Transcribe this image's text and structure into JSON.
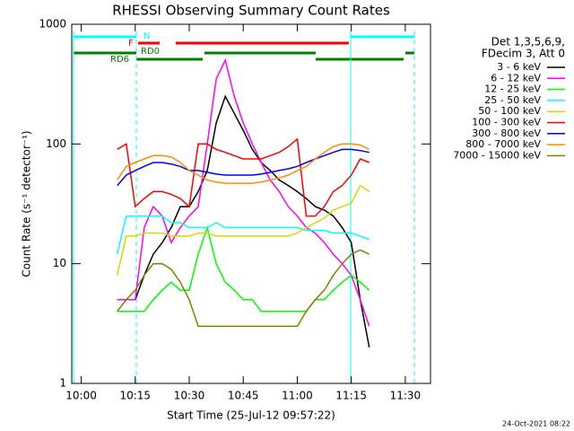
{
  "chart_data": {
    "type": "line",
    "title": "RHESSI Observing Summary Count Rates",
    "xlabel": "Start Time (25-Jul-12 09:57:22)",
    "ylabel": "Count Rate (s⁻¹ detector⁻¹)",
    "legend_title": [
      "Det 1,3,5,6,9,",
      "FDecim 3, Att 0"
    ],
    "footer": "24-Oct-2021 08:22",
    "annotations": [
      "N",
      "F",
      "RD0",
      "RD6"
    ],
    "log_y": true,
    "legend": "right",
    "xlim": [
      597.367,
      697
    ],
    "ylim": [
      1,
      1000
    ],
    "xticks": [
      {
        "value": 600,
        "label": "10:00"
      },
      {
        "value": 615,
        "label": "10:15"
      },
      {
        "value": 630,
        "label": "10:30"
      },
      {
        "value": 645,
        "label": "10:45"
      },
      {
        "value": 660,
        "label": "11:00"
      },
      {
        "value": 675,
        "label": "11:15"
      },
      {
        "value": 690,
        "label": "11:30"
      }
    ],
    "yticks": [
      1,
      10,
      100,
      1000
    ],
    "x": [
      610,
      612.5,
      615,
      617.5,
      620,
      622.5,
      625,
      627.5,
      630,
      632.5,
      635,
      637.5,
      640,
      642.5,
      645,
      647.5,
      650,
      652.5,
      655,
      657.5,
      660,
      662.5,
      665,
      667.5,
      670,
      672.5,
      675,
      677.5,
      680
    ],
    "series": [
      {
        "name": "3 - 6 keV",
        "color": "#000000",
        "values": [
          5,
          5,
          5,
          8,
          12,
          15,
          20,
          30,
          30,
          40,
          60,
          150,
          250,
          180,
          130,
          90,
          70,
          60,
          50,
          45,
          40,
          35,
          30,
          28,
          25,
          20,
          15,
          5,
          2
        ]
      },
      {
        "name": "6 - 12 keV",
        "color": "#ff00ff",
        "values": [
          5,
          5,
          5,
          20,
          30,
          25,
          15,
          20,
          25,
          30,
          100,
          350,
          500,
          250,
          150,
          100,
          70,
          50,
          40,
          30,
          25,
          20,
          18,
          15,
          12,
          10,
          8,
          5,
          3
        ]
      },
      {
        "name": "12 - 25 keV",
        "color": "#00ff00",
        "values": [
          4,
          4,
          4,
          4,
          5,
          6,
          7,
          6,
          6,
          12,
          20,
          10,
          7,
          6,
          5,
          5,
          4,
          4,
          4,
          4,
          4,
          4,
          5,
          5,
          6,
          7,
          8,
          7,
          6
        ]
      },
      {
        "name": "25 - 50 keV",
        "color": "#00ffff",
        "values": [
          12,
          25,
          25,
          25,
          25,
          25,
          22,
          22,
          20,
          20,
          20,
          22,
          20,
          20,
          20,
          20,
          20,
          20,
          20,
          20,
          20,
          19,
          19,
          19,
          18,
          18,
          18,
          17,
          16
        ]
      },
      {
        "name": "50 - 100 keV",
        "color": "#d8d800",
        "values": [
          8,
          17,
          17,
          18,
          18,
          18,
          17,
          17,
          17,
          18,
          18,
          17,
          17,
          17,
          17,
          17,
          17,
          17,
          17,
          17,
          18,
          20,
          22,
          24,
          28,
          30,
          32,
          45,
          40
        ]
      },
      {
        "name": "100 - 300 keV",
        "color": "#ff0000",
        "values": [
          90,
          100,
          30,
          35,
          40,
          40,
          38,
          35,
          30,
          100,
          100,
          90,
          85,
          80,
          75,
          75,
          75,
          80,
          85,
          95,
          110,
          25,
          25,
          30,
          40,
          45,
          55,
          75,
          70
        ]
      },
      {
        "name": "300 - 800 keV",
        "color": "#0000ff",
        "values": [
          45,
          55,
          60,
          65,
          70,
          70,
          68,
          65,
          60,
          60,
          58,
          56,
          55,
          55,
          55,
          55,
          56,
          58,
          60,
          62,
          65,
          70,
          75,
          80,
          85,
          90,
          90,
          88,
          85
        ]
      },
      {
        "name": "800 - 7000 keV",
        "color": "#ff8c00",
        "values": [
          50,
          65,
          70,
          75,
          80,
          80,
          78,
          70,
          60,
          55,
          50,
          48,
          47,
          47,
          47,
          47,
          48,
          50,
          52,
          55,
          60,
          65,
          75,
          85,
          95,
          100,
          100,
          98,
          90
        ]
      },
      {
        "name": "7000 - 15000 keV",
        "color": "#808000",
        "values": [
          4,
          5,
          6,
          8,
          10,
          10,
          9,
          7,
          5,
          3,
          3,
          3,
          3,
          3,
          3,
          3,
          3,
          3,
          3,
          3,
          3,
          4,
          5,
          6,
          8,
          10,
          12,
          13,
          12
        ]
      }
    ]
  }
}
